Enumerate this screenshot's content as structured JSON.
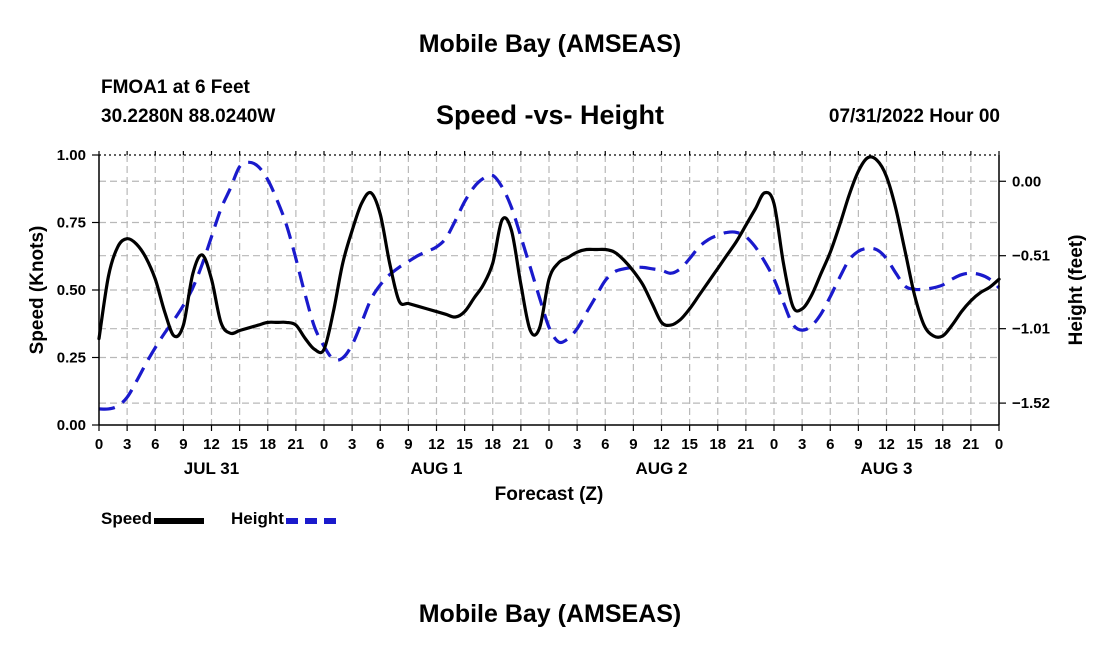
{
  "page": {
    "top_title": "Mobile Bay (AMSEAS)",
    "bottom_title": "Mobile Bay (AMSEAS)",
    "station_line": "FMOA1 at 6 Feet",
    "coords_line": "30.2280N  88.0240W",
    "subtitle": "Speed -vs- Height",
    "datetime": "07/31/2022 Hour 00"
  },
  "chart_data": {
    "type": "line",
    "title": "Speed -vs- Height",
    "xlabel": "Forecast (Z)",
    "ylabel": "Speed (Knots)",
    "y2label": "Height (feet)",
    "xlim": [
      0,
      96
    ],
    "ylim": [
      0,
      1.0
    ],
    "y2lim": [
      -1.67,
      0.18
    ],
    "grid": true,
    "x_tick_step": 3,
    "x_tick_labels": [
      "0",
      "3",
      "6",
      "9",
      "12",
      "15",
      "18",
      "21",
      "0",
      "3",
      "6",
      "9",
      "12",
      "15",
      "18",
      "21",
      "0",
      "3",
      "6",
      "9",
      "12",
      "15",
      "18",
      "21",
      "0",
      "3",
      "6",
      "9",
      "12",
      "15",
      "18",
      "21",
      "0"
    ],
    "day_labels": [
      {
        "label": "JUL 31",
        "hour": 12
      },
      {
        "label": "AUG 1",
        "hour": 36
      },
      {
        "label": "AUG 2",
        "hour": 60
      },
      {
        "label": "AUG 3",
        "hour": 84
      }
    ],
    "y_ticks": [
      "0.00",
      "0.25",
      "0.50",
      "0.75",
      "1.00"
    ],
    "y_tick_values": [
      0,
      0.25,
      0.5,
      0.75,
      1.0
    ],
    "y2_ticks": [
      "−1.52",
      "−1.01",
      "−0.51",
      "0.00"
    ],
    "y2_tick_values": [
      -1.52,
      -1.01,
      -0.51,
      0.0
    ],
    "series": [
      {
        "name": "Speed",
        "color": "#000000",
        "dashed": false,
        "axis": "left",
        "x": [
          0,
          1,
          2,
          3,
          4,
          5,
          6,
          7,
          8,
          9,
          10,
          11,
          12,
          13,
          14,
          15,
          16,
          17,
          18,
          19,
          20,
          21,
          22,
          23,
          24,
          25,
          26,
          27,
          28,
          29,
          30,
          31,
          32,
          33,
          34,
          35,
          36,
          37,
          38,
          39,
          40,
          41,
          42,
          43,
          44,
          45,
          46,
          47,
          48,
          49,
          50,
          51,
          52,
          53,
          54,
          55,
          56,
          57,
          58,
          59,
          60,
          61,
          62,
          63,
          64,
          65,
          66,
          67,
          68,
          69,
          70,
          71,
          72,
          73,
          74,
          75,
          76,
          77,
          78,
          79,
          80,
          81,
          82,
          83,
          84,
          85,
          86,
          87,
          88,
          89,
          90,
          91,
          92,
          93,
          94,
          95,
          96
        ],
        "values": [
          0.32,
          0.55,
          0.66,
          0.69,
          0.67,
          0.62,
          0.54,
          0.42,
          0.33,
          0.37,
          0.56,
          0.63,
          0.54,
          0.38,
          0.34,
          0.35,
          0.36,
          0.37,
          0.38,
          0.38,
          0.38,
          0.37,
          0.32,
          0.28,
          0.28,
          0.42,
          0.6,
          0.72,
          0.82,
          0.86,
          0.78,
          0.6,
          0.46,
          0.45,
          0.44,
          0.43,
          0.42,
          0.41,
          0.4,
          0.42,
          0.47,
          0.52,
          0.6,
          0.76,
          0.72,
          0.52,
          0.35,
          0.36,
          0.54,
          0.6,
          0.62,
          0.64,
          0.65,
          0.65,
          0.65,
          0.64,
          0.61,
          0.57,
          0.52,
          0.45,
          0.38,
          0.37,
          0.39,
          0.43,
          0.48,
          0.53,
          0.58,
          0.63,
          0.68,
          0.74,
          0.8,
          0.86,
          0.82,
          0.6,
          0.44,
          0.43,
          0.48,
          0.56,
          0.64,
          0.74,
          0.85,
          0.94,
          0.99,
          0.98,
          0.92,
          0.8,
          0.64,
          0.48,
          0.37,
          0.33,
          0.33,
          0.37,
          0.42,
          0.46,
          0.49,
          0.51,
          0.54
        ]
      },
      {
        "name": "Height",
        "color": "#1a1acc",
        "dashed": true,
        "axis": "right",
        "x": [
          0,
          1,
          2,
          3,
          4,
          5,
          6,
          7,
          8,
          9,
          10,
          11,
          12,
          13,
          14,
          15,
          16,
          17,
          18,
          19,
          20,
          21,
          22,
          23,
          24,
          25,
          26,
          27,
          28,
          29,
          30,
          31,
          32,
          33,
          34,
          35,
          36,
          37,
          38,
          39,
          40,
          41,
          42,
          43,
          44,
          45,
          46,
          47,
          48,
          49,
          50,
          51,
          52,
          53,
          54,
          55,
          56,
          57,
          58,
          59,
          60,
          61,
          62,
          63,
          64,
          65,
          66,
          67,
          68,
          69,
          70,
          71,
          72,
          73,
          74,
          75,
          76,
          77,
          78,
          79,
          80,
          81,
          82,
          83,
          84,
          85,
          86,
          87,
          88,
          89,
          90,
          91,
          92,
          93,
          94,
          95,
          96
        ],
        "values": [
          -1.56,
          -1.56,
          -1.54,
          -1.48,
          -1.37,
          -1.25,
          -1.14,
          -1.04,
          -0.95,
          -0.85,
          -0.73,
          -0.57,
          -0.38,
          -0.19,
          -0.05,
          0.1,
          0.13,
          0.1,
          0.01,
          -0.13,
          -0.3,
          -0.53,
          -0.78,
          -1.0,
          -1.13,
          -1.22,
          -1.21,
          -1.12,
          -0.97,
          -0.81,
          -0.71,
          -0.64,
          -0.59,
          -0.55,
          -0.51,
          -0.48,
          -0.45,
          -0.39,
          -0.27,
          -0.14,
          -0.04,
          0.02,
          0.04,
          -0.04,
          -0.18,
          -0.38,
          -0.59,
          -0.8,
          -1.0,
          -1.1,
          -1.08,
          -1.01,
          -0.9,
          -0.79,
          -0.68,
          -0.62,
          -0.6,
          -0.59,
          -0.59,
          -0.6,
          -0.61,
          -0.63,
          -0.6,
          -0.53,
          -0.45,
          -0.4,
          -0.37,
          -0.35,
          -0.35,
          -0.38,
          -0.45,
          -0.55,
          -0.67,
          -0.83,
          -0.98,
          -1.02,
          -0.99,
          -0.91,
          -0.79,
          -0.66,
          -0.54,
          -0.48,
          -0.46,
          -0.47,
          -0.53,
          -0.63,
          -0.72,
          -0.74,
          -0.74,
          -0.73,
          -0.71,
          -0.67,
          -0.64,
          -0.63,
          -0.64,
          -0.67,
          -0.73
        ]
      }
    ],
    "legend_position": "bottom-left"
  }
}
